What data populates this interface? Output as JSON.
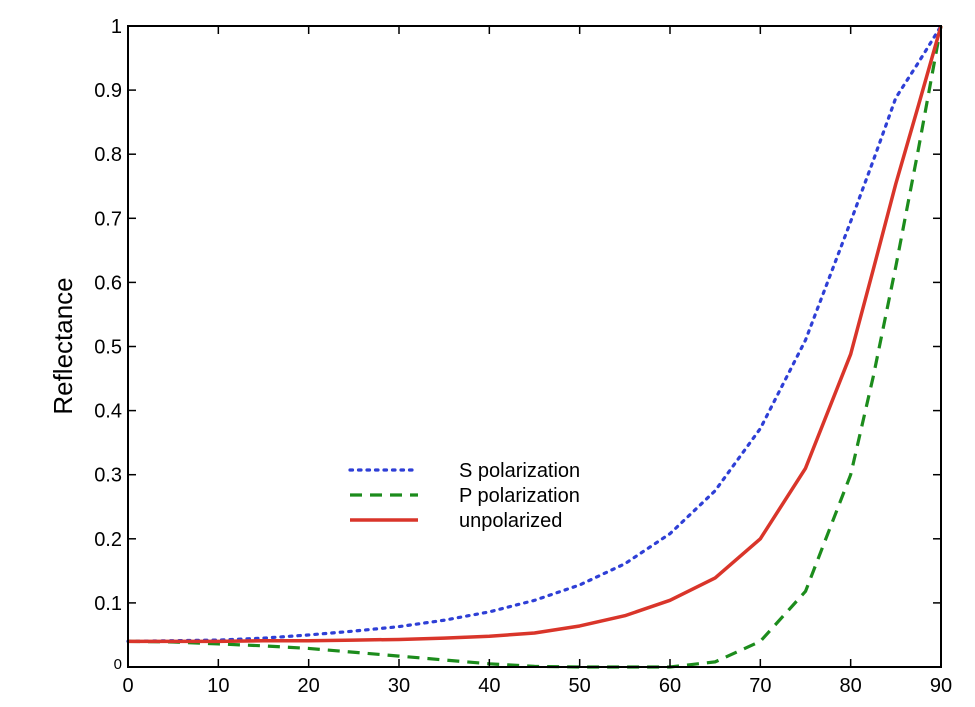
{
  "chart_data": {
    "type": "line",
    "title": "",
    "xlabel": "",
    "ylabel": "Reflectance",
    "xlim": [
      0,
      90
    ],
    "ylim": [
      0,
      1
    ],
    "xticks": [
      0,
      10,
      20,
      30,
      40,
      50,
      60,
      70,
      80,
      90
    ],
    "xtick_labels": [
      "0",
      "10",
      "20",
      "30",
      "40",
      "50",
      "60",
      "70",
      "80",
      "90"
    ],
    "yticks": [
      0,
      0.1,
      0.2,
      0.3,
      0.4,
      0.5,
      0.6,
      0.7,
      0.8,
      0.9,
      1
    ],
    "ytick_labels": [
      "0",
      "0.1",
      "0.2",
      "0.3",
      "0.4",
      "0.5",
      "0.6",
      "0.7",
      "0.8",
      "0.9",
      "1"
    ],
    "grid": false,
    "legend_position": "center",
    "x": [
      0,
      5,
      10,
      15,
      20,
      25,
      30,
      35,
      40,
      45,
      50,
      55,
      60,
      65,
      70,
      75,
      80,
      82.5,
      85,
      87.5,
      90
    ],
    "series": [
      {
        "name": "S polarization",
        "color": "#2e3fd6",
        "style": "dotted",
        "values": [
          0.04,
          0.041,
          0.042,
          0.045,
          0.05,
          0.056,
          0.063,
          0.073,
          0.086,
          0.104,
          0.128,
          0.161,
          0.208,
          0.275,
          0.372,
          0.51,
          0.695,
          0.79,
          0.888,
          0.943,
          1.0
        ]
      },
      {
        "name": "P polarization",
        "color": "#1c8c1c",
        "style": "dashed",
        "values": [
          0.04,
          0.039,
          0.036,
          0.033,
          0.029,
          0.023,
          0.017,
          0.011,
          0.005,
          0.001,
          0.0,
          0.0,
          0.0,
          0.008,
          0.04,
          0.118,
          0.3,
          0.453,
          0.625,
          0.808,
          1.0
        ]
      },
      {
        "name": "unpolarized",
        "color": "#d9352a",
        "style": "solid",
        "values": [
          0.04,
          0.04,
          0.04,
          0.041,
          0.041,
          0.042,
          0.043,
          0.045,
          0.048,
          0.053,
          0.064,
          0.08,
          0.104,
          0.139,
          0.2,
          0.31,
          0.488,
          0.62,
          0.754,
          0.876,
          1.0
        ]
      }
    ]
  }
}
